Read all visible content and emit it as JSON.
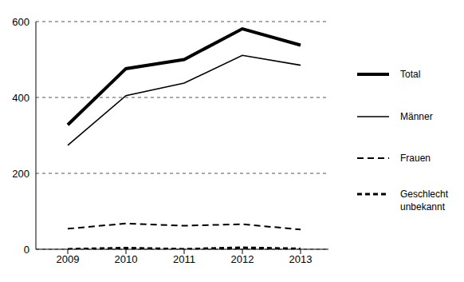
{
  "chart_data": {
    "type": "line",
    "categories": [
      "2009",
      "2010",
      "2011",
      "2012",
      "2013"
    ],
    "series": [
      {
        "name": "Total",
        "color": "#000000",
        "line_style": "thick",
        "values": [
          328,
          476,
          500,
          581,
          538
        ]
      },
      {
        "name": "Männer",
        "color": "#000000",
        "line_style": "solid",
        "values": [
          274,
          405,
          438,
          511,
          485
        ]
      },
      {
        "name": "Frauen",
        "color": "#000000",
        "line_style": "dashed",
        "values": [
          54,
          68,
          62,
          66,
          52
        ]
      },
      {
        "name": "Geschlecht unbekannt",
        "color": "#000000",
        "line_style": "thick-dashed",
        "values": [
          0,
          3,
          0,
          4,
          1
        ]
      }
    ],
    "ylim": [
      0,
      600
    ],
    "yticks": [
      0,
      200,
      400,
      600
    ],
    "grid": true,
    "legend": "right"
  }
}
